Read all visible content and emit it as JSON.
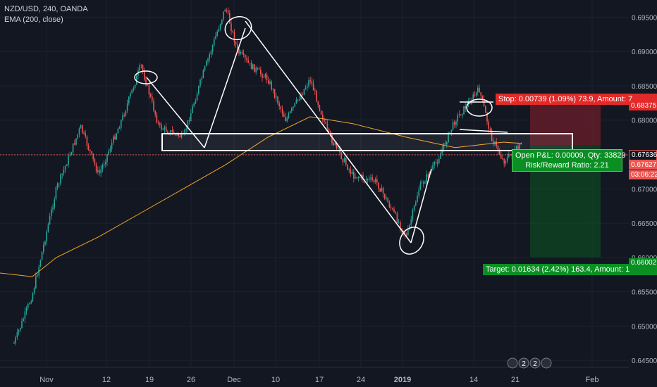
{
  "legend": {
    "symbol": "NZD/USD, 240, OANDA",
    "indicator": "EMA (200, close)"
  },
  "labels": {
    "stop": "Stop: 0.00739 (1.09%) 73.9, Amount: 7",
    "open_pnl": "Open P&L: 0.00009, Qty: 33829",
    "risk_reward": "Risk/Reward Ratio: 2.21",
    "target": "Target: 0.01634 (2.42%) 163.4, Amount: 1"
  },
  "price_tags": {
    "stop_price": "0.68375",
    "current_price": "0.67636",
    "last_price": "0.67627",
    "countdown": "03:06:22",
    "target_price": "0.66002"
  },
  "colors": {
    "background": "#131722",
    "up": "#26a69a",
    "down": "#ef5350",
    "ema": "#f5a623",
    "stop_zone": "#7a1f2b",
    "target_zone": "#0e4a22"
  },
  "event_badges": [
    "2",
    "2"
  ],
  "chart_data": {
    "type": "line",
    "title": "NZD/USD, 240, OANDA",
    "x": [
      "Nov",
      "12",
      "19",
      "26",
      "Dec",
      "10",
      "17",
      "24",
      "2019",
      "14",
      "21",
      "Feb"
    ],
    "y_ticks": [
      "0.69500",
      "0.69000",
      "0.68500",
      "0.68000",
      "0.67500",
      "0.67000",
      "0.66500",
      "0.66000",
      "0.65500",
      "0.65000",
      "0.64500"
    ],
    "ylim": [
      0.644,
      0.6975
    ],
    "series": [
      {
        "name": "NZD/USD",
        "x": [
          "Oct 29",
          "Nov 1",
          "Nov 5",
          "Nov 9",
          "Nov 12",
          "Nov 16",
          "Nov 19",
          "Nov 22",
          "Nov 26",
          "Nov 29",
          "Dec 3",
          "Dec 5",
          "Dec 7",
          "Dec 10",
          "Dec 13",
          "Dec 17",
          "Dec 20",
          "Dec 24",
          "Dec 28",
          "Jan 2",
          "Jan 4",
          "Jan 7",
          "Jan 10",
          "Jan 14",
          "Jan 16",
          "Jan 18",
          "Jan 21"
        ],
        "values": [
          0.6475,
          0.6545,
          0.67,
          0.679,
          0.672,
          0.6805,
          0.688,
          0.679,
          0.6775,
          0.686,
          0.6965,
          0.69,
          0.688,
          0.686,
          0.68,
          0.686,
          0.678,
          0.672,
          0.671,
          0.663,
          0.67,
          0.674,
          0.68,
          0.6845,
          0.6775,
          0.674,
          0.6763
        ]
      },
      {
        "name": "EMA (200, close)",
        "x": [
          "Oct 24",
          "Oct 29",
          "Nov 1",
          "Nov 5",
          "Nov 12",
          "Nov 19",
          "Nov 26",
          "Dec 3",
          "Dec 10",
          "Dec 17",
          "Dec 24",
          "Jan 2",
          "Jan 10",
          "Jan 18",
          "Jan 21"
        ],
        "values": [
          0.658,
          0.6575,
          0.6572,
          0.66,
          0.663,
          0.6665,
          0.67,
          0.6735,
          0.6775,
          0.6805,
          0.6795,
          0.6775,
          0.676,
          0.6768,
          0.6766
        ]
      }
    ],
    "position": {
      "entry": 0.67636,
      "stop": 0.68375,
      "target": 0.66002
    },
    "grid": true
  }
}
